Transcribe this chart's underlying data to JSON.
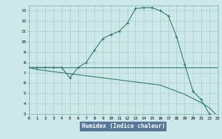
{
  "xlabel": "Humidex (Indice chaleur)",
  "bg_color": "#cce8e8",
  "plot_bg_color": "#cce8e8",
  "grid_color": "#aacccc",
  "line_color": "#2a7a6a",
  "axis_label_bg": "#6688aa",
  "xlim": [
    0,
    23
  ],
  "ylim": [
    3,
    13.5
  ],
  "xticks": [
    0,
    1,
    2,
    3,
    4,
    5,
    6,
    7,
    8,
    9,
    10,
    11,
    12,
    13,
    14,
    15,
    16,
    17,
    18,
    19,
    20,
    21,
    22,
    23
  ],
  "yticks": [
    3,
    4,
    5,
    6,
    7,
    8,
    9,
    10,
    11,
    12,
    13
  ],
  "line1_x": [
    0,
    1,
    2,
    3,
    4,
    5,
    6,
    7,
    8,
    9,
    10,
    11,
    12,
    13,
    14,
    15,
    16,
    17,
    18,
    19,
    20,
    21,
    22,
    23
  ],
  "line1_y": [
    7.5,
    7.5,
    7.5,
    7.5,
    7.5,
    6.5,
    7.5,
    8.0,
    9.2,
    10.3,
    10.7,
    11.0,
    11.8,
    13.2,
    13.3,
    13.3,
    13.0,
    12.5,
    10.5,
    7.8,
    5.2,
    4.4,
    3.0,
    2.7
  ],
  "line2_x": [
    0,
    1,
    2,
    3,
    4,
    5,
    6,
    7,
    8,
    9,
    10,
    11,
    12,
    13,
    14,
    15,
    16,
    17,
    18,
    19,
    20,
    21,
    22,
    23
  ],
  "line2_y": [
    7.5,
    7.5,
    7.5,
    7.5,
    7.5,
    7.5,
    7.5,
    7.5,
    7.5,
    7.5,
    7.5,
    7.5,
    7.5,
    7.5,
    7.5,
    7.5,
    7.5,
    7.5,
    7.5,
    7.5,
    7.5,
    7.5,
    7.5,
    7.5
  ],
  "line3_x": [
    0,
    1,
    2,
    3,
    4,
    5,
    6,
    7,
    8,
    9,
    10,
    11,
    12,
    13,
    14,
    15,
    16,
    17,
    18,
    19,
    20,
    21,
    22,
    23
  ],
  "line3_y": [
    7.5,
    7.3,
    7.2,
    7.1,
    7.0,
    6.9,
    6.8,
    6.7,
    6.6,
    6.5,
    6.4,
    6.3,
    6.2,
    6.1,
    6.0,
    5.9,
    5.8,
    5.5,
    5.2,
    4.9,
    4.5,
    4.1,
    3.6,
    2.8
  ]
}
